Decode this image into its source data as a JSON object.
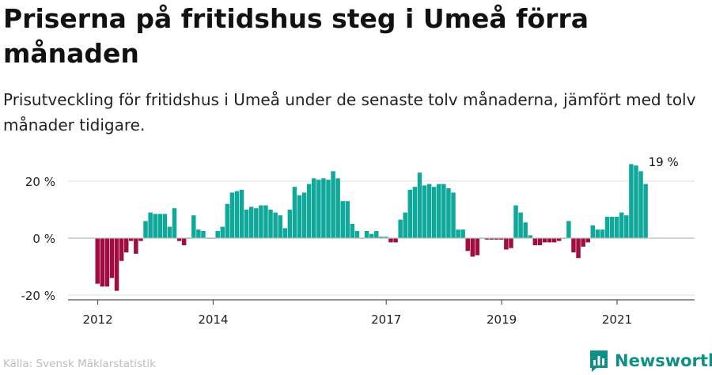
{
  "title": "Priserna på fritidshus steg i Umeå förra månaden",
  "subtitle": "Prisutveckling för fritidshus i Umeå under de senaste tolv månaderna, jämfört med tolv månader tidigare.",
  "source": "Källa: Svensk Mäklarstatistik",
  "brand": "Newsworthy",
  "chart_data": {
    "type": "bar",
    "unit": "%",
    "ylim": [
      -22,
      30
    ],
    "yticks": [
      -20,
      0,
      20
    ],
    "ytick_labels": [
      "-20 %",
      "0 %",
      "20 %"
    ],
    "xticks": [
      "2012",
      "2014",
      "2017",
      "2019",
      "2021"
    ],
    "xtick_years": [
      2012,
      2014,
      2017,
      2019,
      2021
    ],
    "start_month": "2012-01",
    "grid": "horizontal",
    "colors": {
      "positive": "#0fa89a",
      "negative": "#a00d40"
    },
    "annotation": {
      "text": "19 %",
      "month": "2021-10"
    },
    "values": [
      -16,
      -17,
      -17,
      -14,
      -18.5,
      -8,
      -5,
      -1,
      -5.5,
      -1,
      6,
      9,
      8.5,
      8.5,
      8.5,
      4,
      10.5,
      -1,
      -2.5,
      0,
      8,
      3,
      2.5,
      0,
      0,
      2.5,
      4,
      12,
      16,
      16.5,
      17,
      10,
      11,
      10.5,
      11.5,
      11.5,
      10,
      9,
      8,
      3.5,
      10,
      18,
      15,
      16,
      19,
      21,
      20.5,
      21,
      20.5,
      23.5,
      21,
      13,
      13,
      5,
      2.5,
      0,
      2.5,
      1.5,
      2.5,
      0.5,
      0.5,
      -1.5,
      -1.5,
      6.5,
      9,
      17,
      18,
      23,
      18.5,
      19,
      18,
      19,
      19,
      17.5,
      16,
      3,
      3,
      -4.5,
      -6.5,
      -6,
      0,
      -0.5,
      -0.5,
      -0.5,
      -0.5,
      -4,
      -3.5,
      11.5,
      9,
      5.5,
      1,
      -2.5,
      -2.5,
      -1.5,
      -1.5,
      -1.5,
      -1,
      0,
      6,
      -5,
      -7,
      -3,
      -1.5,
      4.5,
      3,
      3,
      7.5,
      7.5,
      7.5,
      9,
      8,
      26,
      25.5,
      23.5,
      19
    ]
  }
}
